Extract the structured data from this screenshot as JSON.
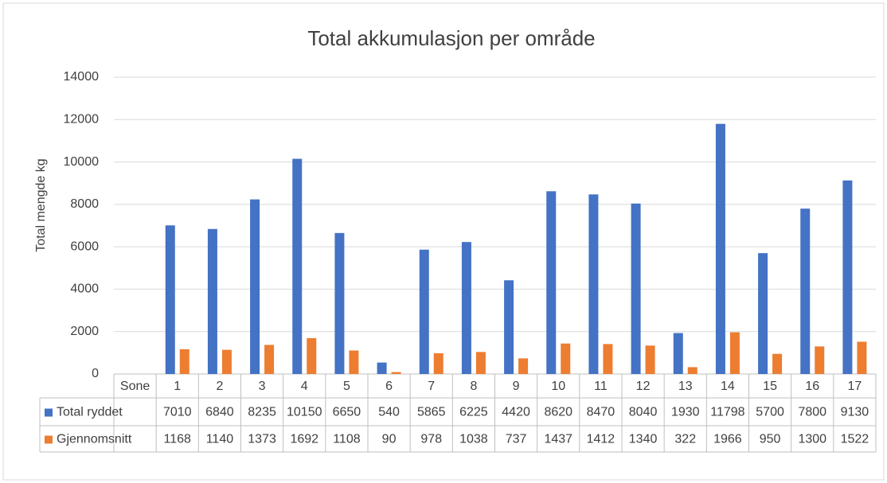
{
  "chart_data": {
    "type": "bar",
    "title": "Total akkumulasjon per område",
    "y_label": "Total mengde kg",
    "categories": [
      "Sone",
      "1",
      "2",
      "3",
      "4",
      "5",
      "6",
      "7",
      "8",
      "9",
      "10",
      "11",
      "12",
      "13",
      "14",
      "15",
      "16",
      "17"
    ],
    "series": [
      {
        "name": "Total ryddet",
        "color": "#4472c4",
        "values": [
          null,
          7010,
          6840,
          8235,
          10150,
          6650,
          540,
          5865,
          6225,
          4420,
          8620,
          8470,
          8040,
          1930,
          11798,
          5700,
          7800,
          9130
        ]
      },
      {
        "name": "Gjennomsnitt",
        "color": "#ed7d31",
        "values": [
          null,
          1168,
          1140,
          1373,
          1692,
          1108,
          90,
          978,
          1038,
          737,
          1437,
          1412,
          1340,
          322,
          1966,
          950,
          1300,
          1522
        ]
      }
    ],
    "ylim": [
      0,
      14000
    ],
    "yticks": [
      0,
      2000,
      4000,
      6000,
      8000,
      10000,
      12000,
      14000
    ],
    "grid": true
  }
}
